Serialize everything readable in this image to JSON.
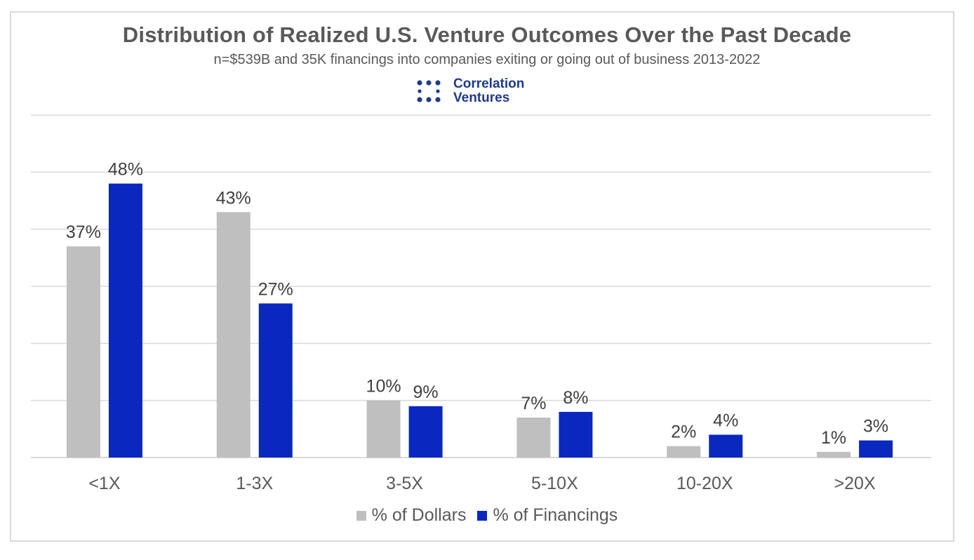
{
  "chart_data": {
    "type": "bar",
    "title": "Distribution of Realized U.S. Venture Outcomes Over the Past Decade",
    "subtitle": "n=$539B and 35K financings into companies exiting or going out of business 2013-2022",
    "categories": [
      "<1X",
      "1-3X",
      "3-5X",
      "5-10X",
      "10-20X",
      ">20X"
    ],
    "series": [
      {
        "name": "% of Dollars",
        "color": "#bfbfbf",
        "values": [
          37,
          43,
          10,
          7,
          2,
          1
        ],
        "labels": [
          "37%",
          "43%",
          "10%",
          "7%",
          "2%",
          "1%"
        ]
      },
      {
        "name": "% of Financings",
        "color": "#0a28bf",
        "values": [
          48,
          27,
          9,
          8,
          4,
          3
        ],
        "labels": [
          "48%",
          "27%",
          "9%",
          "8%",
          "4%",
          "3%"
        ]
      }
    ],
    "ylim": [
      0,
      60
    ],
    "grid": true,
    "legend": "bottom"
  },
  "logo": {
    "line1": "Correlation",
    "line2": "Ventures",
    "color": "#1f3a8a"
  }
}
